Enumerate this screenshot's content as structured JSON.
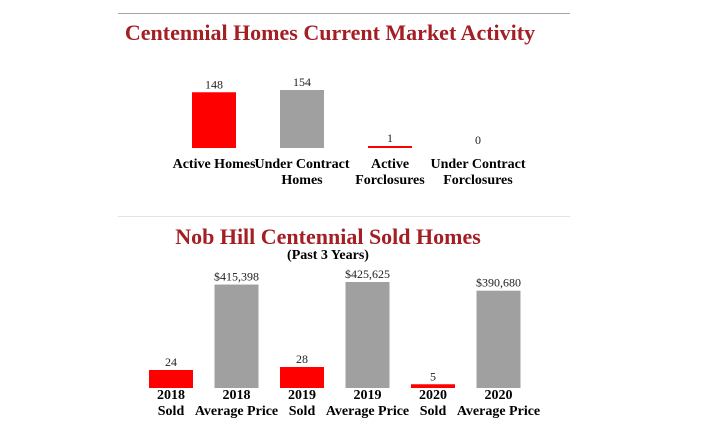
{
  "chart_data": [
    {
      "type": "bar",
      "title": "Centennial Homes Current Market Activity",
      "categories": [
        [
          "Active Homes"
        ],
        [
          "Under Contract",
          "Homes"
        ],
        [
          "Active",
          "Forclosures"
        ],
        [
          "Under Contract",
          "Forclosures"
        ]
      ],
      "values": [
        148,
        154,
        1,
        0
      ],
      "value_labels": [
        "148",
        "154",
        "1",
        "0"
      ],
      "colors": [
        "#ff0000",
        "#a0a0a0",
        "#ff0000",
        "#a0a0a0"
      ],
      "xlabel": "",
      "ylabel": "",
      "grid": false
    },
    {
      "type": "bar",
      "title": "Nob Hill Centennial Sold Homes",
      "subtitle": "(Past 3 Years)",
      "categories": [
        [
          "2018",
          "Sold"
        ],
        [
          "2018",
          "Average Price"
        ],
        [
          "2019",
          "Sold"
        ],
        [
          "2019",
          "Average Price"
        ],
        [
          "2020",
          "Sold"
        ],
        [
          "2020",
          "Average Price"
        ]
      ],
      "values": [
        24,
        415398,
        28,
        425625,
        5,
        390680
      ],
      "value_labels": [
        "24",
        "$415,398",
        "28",
        "$425,625",
        "5",
        "$390,680"
      ],
      "colors": [
        "#ff0000",
        "#a0a0a0",
        "#ff0000",
        "#a0a0a0",
        "#ff0000",
        "#a0a0a0"
      ],
      "xlabel": "",
      "ylabel": "",
      "grid": false
    }
  ]
}
